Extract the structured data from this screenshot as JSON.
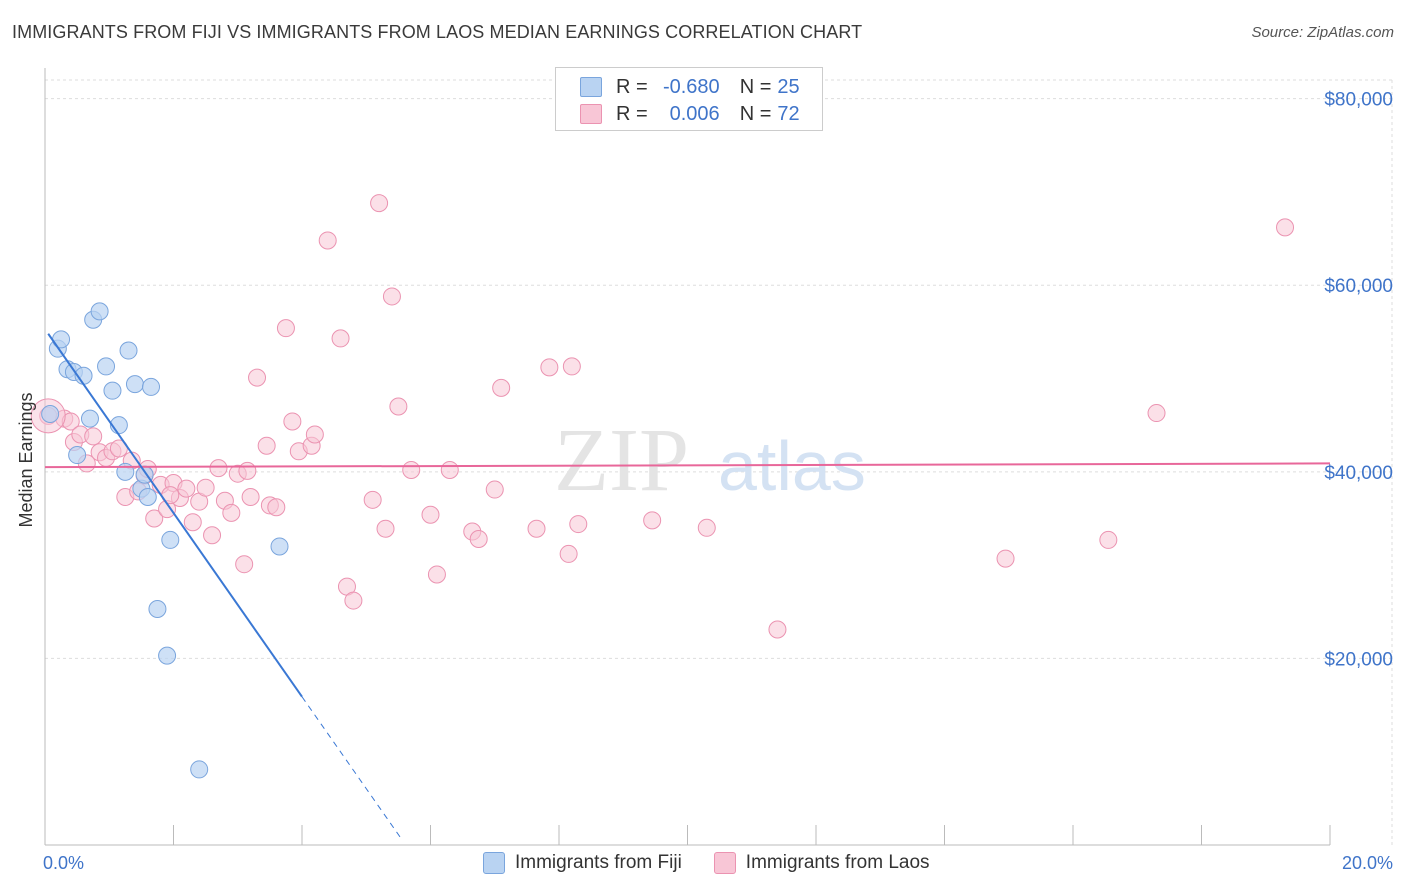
{
  "title": "IMMIGRANTS FROM FIJI VS IMMIGRANTS FROM LAOS MEDIAN EARNINGS CORRELATION CHART",
  "source": "Source: ZipAtlas.com",
  "watermark": {
    "zip": "ZIP",
    "atlas": "atlas"
  },
  "colors": {
    "fiji_fill": "#b9d3f2",
    "fiji_stroke": "#7aa5dd",
    "fiji_line": "#3a78d4",
    "laos_fill": "#f8c6d6",
    "laos_stroke": "#eb93b1",
    "laos_line": "#e8679a",
    "axis_text": "#3f74c9",
    "grid": "#dddddd"
  },
  "legend": {
    "fiji": {
      "r_label": "R = ",
      "r_value": "-0.680",
      "n_label": "N = ",
      "n_value": "25"
    },
    "laos": {
      "r_label": "R = ",
      "r_value": "0.006",
      "n_label": "N = ",
      "n_value": "72"
    }
  },
  "chart_data": {
    "type": "scatter",
    "title": "IMMIGRANTS FROM FIJI VS IMMIGRANTS FROM LAOS MEDIAN EARNINGS CORRELATION CHART",
    "xlabel": "",
    "ylabel": "Median Earnings",
    "xlim": [
      0,
      20
    ],
    "ylim": [
      0,
      82000
    ],
    "x_tick_labels": {
      "min": "0.0%",
      "max": "20.0%"
    },
    "y_ticks": [
      {
        "value": 20000,
        "label": "$20,000"
      },
      {
        "value": 40000,
        "label": "$40,000"
      },
      {
        "value": 60000,
        "label": "$60,000"
      },
      {
        "value": 80000,
        "label": "$80,000"
      }
    ],
    "series": [
      {
        "name": "Immigrants from Fiji",
        "r": -0.68,
        "n": 25,
        "trend": {
          "x0": 0.05,
          "y0": 54800,
          "x_solid_end": 4.0,
          "x_dash_end": 5.55,
          "slope": -9850
        },
        "points": [
          [
            0.08,
            46200
          ],
          [
            0.2,
            53200
          ],
          [
            0.25,
            54200
          ],
          [
            0.35,
            51000
          ],
          [
            0.45,
            50700
          ],
          [
            0.6,
            50300
          ],
          [
            0.5,
            41800
          ],
          [
            0.7,
            45700
          ],
          [
            0.75,
            56300
          ],
          [
            0.85,
            57200
          ],
          [
            0.95,
            51300
          ],
          [
            1.05,
            48700
          ],
          [
            1.15,
            45000
          ],
          [
            1.25,
            40000
          ],
          [
            1.3,
            53000
          ],
          [
            1.4,
            49400
          ],
          [
            1.5,
            38200
          ],
          [
            1.55,
            39700
          ],
          [
            1.65,
            49100
          ],
          [
            1.95,
            32700
          ],
          [
            1.75,
            25300
          ],
          [
            1.9,
            20300
          ],
          [
            2.4,
            8100
          ],
          [
            3.65,
            32000
          ],
          [
            1.6,
            37300
          ]
        ]
      },
      {
        "name": "Immigrants from Laos",
        "r": 0.006,
        "n": 72,
        "trend": {
          "x0": 0.0,
          "y0": 40500,
          "x1": 20.0,
          "y1": 40900
        },
        "points": [
          [
            0.05,
            46000
          ],
          [
            0.3,
            45700
          ],
          [
            0.4,
            45400
          ],
          [
            0.45,
            43200
          ],
          [
            0.55,
            44000
          ],
          [
            0.65,
            40900
          ],
          [
            0.75,
            43800
          ],
          [
            0.85,
            42100
          ],
          [
            0.95,
            41500
          ],
          [
            1.05,
            42200
          ],
          [
            1.15,
            42500
          ],
          [
            1.25,
            37300
          ],
          [
            1.35,
            41200
          ],
          [
            1.45,
            37900
          ],
          [
            1.55,
            39600
          ],
          [
            1.6,
            40300
          ],
          [
            1.7,
            35000
          ],
          [
            1.8,
            38600
          ],
          [
            1.9,
            36000
          ],
          [
            2.0,
            38800
          ],
          [
            2.1,
            37200
          ],
          [
            2.2,
            38200
          ],
          [
            2.3,
            34600
          ],
          [
            2.4,
            36800
          ],
          [
            2.5,
            38300
          ],
          [
            2.6,
            33200
          ],
          [
            2.7,
            40400
          ],
          [
            2.8,
            36900
          ],
          [
            2.9,
            35600
          ],
          [
            3.0,
            39800
          ],
          [
            3.1,
            30100
          ],
          [
            3.15,
            40100
          ],
          [
            3.2,
            37300
          ],
          [
            3.3,
            50100
          ],
          [
            3.45,
            42800
          ],
          [
            3.5,
            36400
          ],
          [
            3.6,
            36200
          ],
          [
            3.75,
            55400
          ],
          [
            3.85,
            45400
          ],
          [
            3.95,
            42200
          ],
          [
            4.15,
            42800
          ],
          [
            4.2,
            44000
          ],
          [
            4.4,
            64800
          ],
          [
            4.6,
            54300
          ],
          [
            4.7,
            27700
          ],
          [
            4.8,
            26200
          ],
          [
            5.1,
            37000
          ],
          [
            5.2,
            68800
          ],
          [
            5.3,
            33900
          ],
          [
            5.4,
            58800
          ],
          [
            5.5,
            47000
          ],
          [
            5.7,
            40200
          ],
          [
            6.0,
            35400
          ],
          [
            6.1,
            29000
          ],
          [
            6.3,
            40200
          ],
          [
            6.65,
            33600
          ],
          [
            6.75,
            32800
          ],
          [
            7.0,
            38100
          ],
          [
            7.1,
            49000
          ],
          [
            7.65,
            33900
          ],
          [
            7.85,
            51200
          ],
          [
            8.15,
            31200
          ],
          [
            8.2,
            51300
          ],
          [
            8.3,
            34400
          ],
          [
            9.45,
            34800
          ],
          [
            10.3,
            34000
          ],
          [
            11.4,
            23100
          ],
          [
            14.95,
            30700
          ],
          [
            16.55,
            32700
          ],
          [
            17.3,
            46300
          ],
          [
            19.3,
            66200
          ],
          [
            1.95,
            37500
          ]
        ]
      }
    ]
  },
  "bottom_legend": {
    "fiji": "Immigrants from Fiji",
    "laos": "Immigrants from Laos"
  }
}
